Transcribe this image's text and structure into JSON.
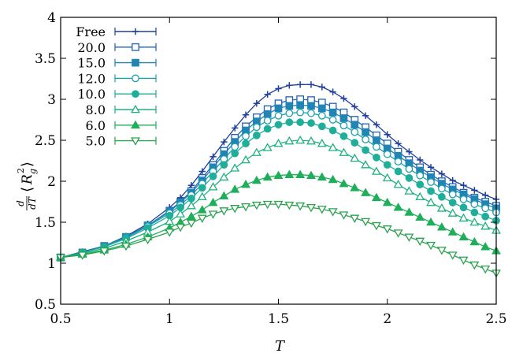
{
  "chart_data": {
    "type": "line",
    "xlabel": "T",
    "ylabel_parts": {
      "d": "d",
      "dT": "dT",
      "lang": "⟨",
      "R": "R",
      "sub": "g",
      "sup": "2",
      "rang": "⟩"
    },
    "xlim": [
      0.5,
      2.5
    ],
    "ylim": [
      0.5,
      4
    ],
    "xticks": [
      "0.5",
      "1",
      "1.5",
      "2",
      "2.5"
    ],
    "yticks": [
      "0.5",
      "1",
      "1.5",
      "2",
      "2.5",
      "3",
      "3.5",
      "4"
    ],
    "grid": false,
    "legend_position": "top-left",
    "x": [
      0.5,
      0.6,
      0.7,
      0.8,
      0.9,
      1.0,
      1.05,
      1.1,
      1.15,
      1.2,
      1.25,
      1.3,
      1.35,
      1.4,
      1.45,
      1.5,
      1.55,
      1.6,
      1.65,
      1.7,
      1.75,
      1.8,
      1.85,
      1.9,
      1.95,
      2.0,
      2.05,
      2.1,
      2.15,
      2.2,
      2.25,
      2.3,
      2.35,
      2.4,
      2.45,
      2.5
    ],
    "series": [
      {
        "name": "Free",
        "marker": "plus",
        "color": "#1f3f9e",
        "values": [
          1.07,
          1.14,
          1.21,
          1.33,
          1.48,
          1.68,
          1.8,
          1.95,
          2.12,
          2.3,
          2.48,
          2.65,
          2.81,
          2.95,
          3.06,
          3.13,
          3.17,
          3.18,
          3.18,
          3.15,
          3.09,
          3.01,
          2.91,
          2.8,
          2.69,
          2.57,
          2.46,
          2.36,
          2.26,
          2.17,
          2.09,
          2.01,
          1.95,
          1.89,
          1.83,
          1.78
        ]
      },
      {
        "name": "20.0",
        "marker": "open-square",
        "color": "#2062b4",
        "values": [
          1.07,
          1.13,
          1.21,
          1.32,
          1.46,
          1.64,
          1.75,
          1.88,
          2.04,
          2.2,
          2.37,
          2.53,
          2.67,
          2.78,
          2.88,
          2.95,
          2.99,
          3.0,
          2.99,
          2.96,
          2.91,
          2.84,
          2.75,
          2.66,
          2.56,
          2.46,
          2.36,
          2.26,
          2.17,
          2.08,
          2.0,
          1.93,
          1.86,
          1.8,
          1.75,
          1.7
        ]
      },
      {
        "name": "15.0",
        "marker": "filled-square",
        "color": "#2084b5",
        "values": [
          1.07,
          1.13,
          1.21,
          1.32,
          1.46,
          1.63,
          1.74,
          1.86,
          2.01,
          2.17,
          2.33,
          2.48,
          2.62,
          2.73,
          2.82,
          2.89,
          2.92,
          2.93,
          2.92,
          2.89,
          2.84,
          2.77,
          2.69,
          2.6,
          2.5,
          2.4,
          2.31,
          2.22,
          2.13,
          2.05,
          1.97,
          1.9,
          1.84,
          1.78,
          1.72,
          1.67
        ]
      },
      {
        "name": "12.0",
        "marker": "open-circle",
        "color": "#1e9fae",
        "values": [
          1.07,
          1.13,
          1.2,
          1.31,
          1.45,
          1.61,
          1.71,
          1.83,
          1.97,
          2.12,
          2.27,
          2.42,
          2.55,
          2.66,
          2.74,
          2.8,
          2.83,
          2.84,
          2.83,
          2.8,
          2.75,
          2.68,
          2.6,
          2.51,
          2.42,
          2.33,
          2.24,
          2.15,
          2.07,
          1.99,
          1.91,
          1.84,
          1.78,
          1.72,
          1.67,
          1.62
        ]
      },
      {
        "name": "10.0",
        "marker": "filled-circle",
        "color": "#1fae9a",
        "values": [
          1.07,
          1.13,
          1.2,
          1.3,
          1.43,
          1.58,
          1.68,
          1.79,
          1.92,
          2.06,
          2.2,
          2.34,
          2.46,
          2.56,
          2.64,
          2.69,
          2.72,
          2.72,
          2.71,
          2.67,
          2.62,
          2.55,
          2.47,
          2.38,
          2.29,
          2.2,
          2.12,
          2.04,
          1.96,
          1.88,
          1.81,
          1.74,
          1.68,
          1.62,
          1.57,
          1.52
        ]
      },
      {
        "name": "8.0",
        "marker": "open-triangle-up",
        "color": "#1fb080",
        "values": [
          1.07,
          1.12,
          1.18,
          1.27,
          1.38,
          1.51,
          1.6,
          1.7,
          1.81,
          1.93,
          2.05,
          2.16,
          2.26,
          2.35,
          2.41,
          2.46,
          2.49,
          2.5,
          2.49,
          2.46,
          2.41,
          2.35,
          2.28,
          2.2,
          2.12,
          2.04,
          1.96,
          1.88,
          1.81,
          1.74,
          1.67,
          1.61,
          1.55,
          1.5,
          1.45,
          1.4
        ]
      },
      {
        "name": "6.0",
        "marker": "filled-triangle-up",
        "color": "#1fae5a",
        "values": [
          1.07,
          1.11,
          1.16,
          1.23,
          1.32,
          1.43,
          1.5,
          1.57,
          1.65,
          1.74,
          1.82,
          1.9,
          1.96,
          2.01,
          2.05,
          2.07,
          2.08,
          2.08,
          2.07,
          2.05,
          2.02,
          1.97,
          1.92,
          1.86,
          1.8,
          1.74,
          1.68,
          1.62,
          1.56,
          1.5,
          1.44,
          1.38,
          1.32,
          1.26,
          1.2,
          1.15
        ]
      },
      {
        "name": "5.0",
        "marker": "open-triangle-down",
        "color": "#2aa24e",
        "values": [
          1.07,
          1.1,
          1.15,
          1.21,
          1.29,
          1.38,
          1.44,
          1.49,
          1.55,
          1.6,
          1.64,
          1.67,
          1.69,
          1.71,
          1.72,
          1.72,
          1.71,
          1.7,
          1.68,
          1.66,
          1.63,
          1.59,
          1.55,
          1.51,
          1.46,
          1.42,
          1.37,
          1.32,
          1.27,
          1.22,
          1.16,
          1.1,
          1.04,
          0.98,
          0.93,
          0.88
        ]
      }
    ]
  }
}
